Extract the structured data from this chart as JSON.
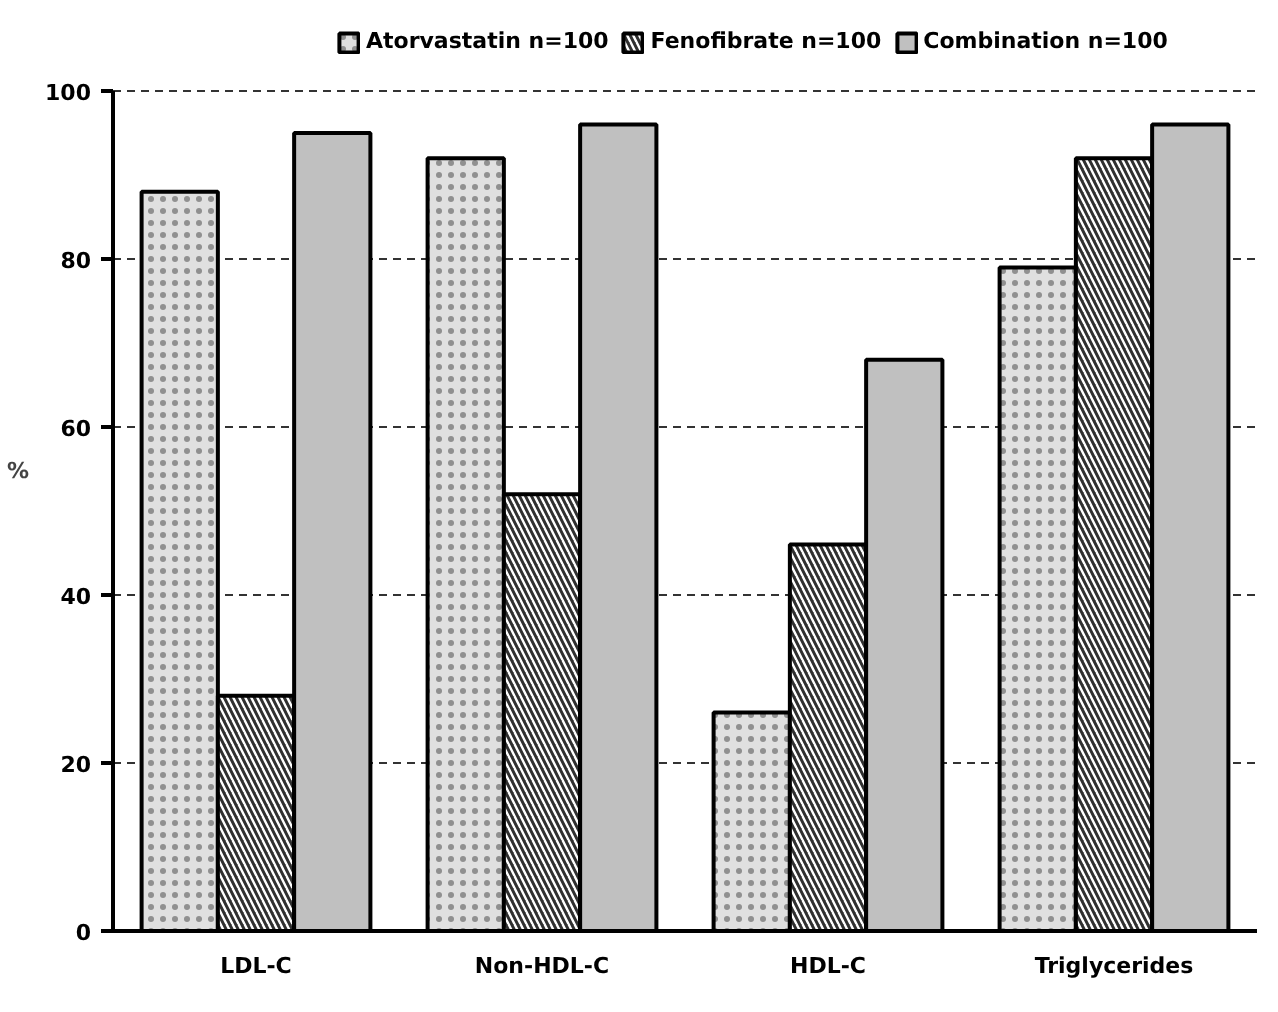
{
  "chart_data": {
    "type": "bar",
    "ylabel": "%",
    "categories": [
      "LDL-C",
      "Non-HDL-C",
      "HDL-C",
      "Triglycerides"
    ],
    "series": [
      {
        "name": "Atorvastatin n=100",
        "color": "#e0e0e0",
        "values": [
          88,
          92,
          26,
          79
        ]
      },
      {
        "name": "Fenofibrate n=100",
        "color": "#303030",
        "values": [
          28,
          52,
          46,
          92
        ]
      },
      {
        "name": "Combination n=100",
        "color": "#c0c0c0",
        "values": [
          95,
          96,
          68,
          96
        ]
      }
    ],
    "ylim": [
      0,
      100
    ],
    "yticks": [
      0,
      20,
      40,
      60,
      80,
      100
    ],
    "grid": "y",
    "legend": "top"
  }
}
